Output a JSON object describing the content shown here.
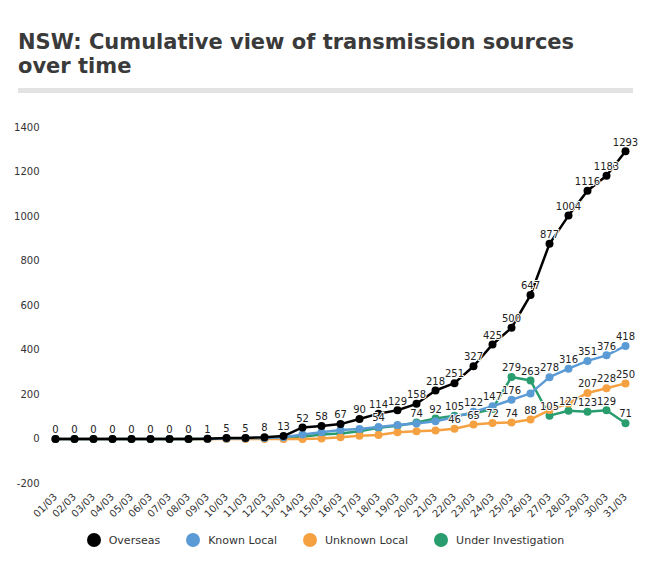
{
  "chart_data": {
    "type": "line",
    "title": "NSW: Cumulative view of transmission sources over time",
    "x": [
      "01/03",
      "02/03",
      "03/03",
      "04/03",
      "05/03",
      "06/03",
      "07/03",
      "08/03",
      "09/03",
      "10/03",
      "11/03",
      "12/03",
      "13/03",
      "14/03",
      "15/03",
      "16/03",
      "17/03",
      "18/03",
      "19/03",
      "20/03",
      "21/03",
      "22/03",
      "23/03",
      "24/03",
      "25/03",
      "26/03",
      "27/03",
      "28/03",
      "29/03",
      "30/03",
      "31/03"
    ],
    "ylim": [
      -200,
      1400
    ],
    "yticks": [
      -200,
      0,
      200,
      400,
      600,
      800,
      1000,
      1200,
      1400
    ],
    "grid": false,
    "legend": "bottom",
    "data_labels": true,
    "marker": "circle",
    "line_style": "solid",
    "series": [
      {
        "name": "Overseas",
        "color": "#000000",
        "values": [
          0,
          0,
          0,
          0,
          0,
          0,
          0,
          0,
          1,
          5,
          5,
          8,
          13,
          52,
          58,
          67,
          90,
          114,
          129,
          158,
          218,
          251,
          327,
          425,
          500,
          647,
          877,
          1004,
          1116,
          1183,
          1293
        ],
        "value_labels": [
          "0",
          "0",
          "0",
          "0",
          "0",
          "0",
          "0",
          "0",
          "1",
          "5",
          "5",
          "8",
          "13",
          "52",
          "58",
          "67",
          "90",
          "114",
          "129",
          "158",
          "218",
          "251",
          "327",
          "425",
          "500",
          "647",
          "877",
          "1004",
          "1116",
          "1183",
          "1293"
        ]
      },
      {
        "name": "Known Local",
        "color": "#5b9bd5",
        "values": [
          0,
          0,
          0,
          0,
          0,
          0,
          0,
          0,
          1,
          2,
          3,
          5,
          8,
          20,
          30,
          40,
          45,
          54,
          63,
          70,
          80,
          98,
          122,
          147,
          176,
          205,
          278,
          316,
          351,
          376,
          418
        ],
        "value_labels": [
          null,
          null,
          null,
          null,
          null,
          null,
          null,
          null,
          null,
          null,
          null,
          null,
          null,
          null,
          null,
          null,
          null,
          "54",
          null,
          null,
          null,
          null,
          "122",
          "147",
          "176",
          null,
          "278",
          "316",
          "351",
          "376",
          "418"
        ]
      },
      {
        "name": "Unknown Local",
        "color": "#f5a142",
        "values": [
          0,
          0,
          0,
          0,
          0,
          0,
          0,
          0,
          0,
          0,
          0,
          0,
          0,
          0,
          2,
          8,
          15,
          18,
          30,
          35,
          38,
          46,
          65,
          72,
          74,
          88,
          130,
          160,
          207,
          228,
          250
        ],
        "value_labels": [
          null,
          null,
          null,
          null,
          null,
          null,
          null,
          null,
          null,
          null,
          null,
          null,
          null,
          null,
          null,
          null,
          null,
          null,
          null,
          null,
          null,
          "46",
          "65",
          "72",
          "74",
          "88",
          null,
          null,
          "207",
          "228",
          "250"
        ]
      },
      {
        "name": "Under Investigation",
        "color": "#2a9d6f",
        "values": [
          0,
          0,
          0,
          0,
          0,
          0,
          0,
          0,
          0,
          2,
          3,
          3,
          5,
          10,
          20,
          25,
          35,
          50,
          60,
          74,
          92,
          105,
          115,
          135,
          279,
          263,
          105,
          127,
          123,
          129,
          71
        ],
        "value_labels": [
          null,
          null,
          null,
          null,
          null,
          null,
          null,
          null,
          null,
          null,
          null,
          null,
          null,
          null,
          null,
          null,
          null,
          null,
          null,
          "74",
          "92",
          "105",
          null,
          null,
          "279",
          "263",
          "105",
          "127",
          "123",
          "129",
          "71"
        ]
      }
    ]
  }
}
